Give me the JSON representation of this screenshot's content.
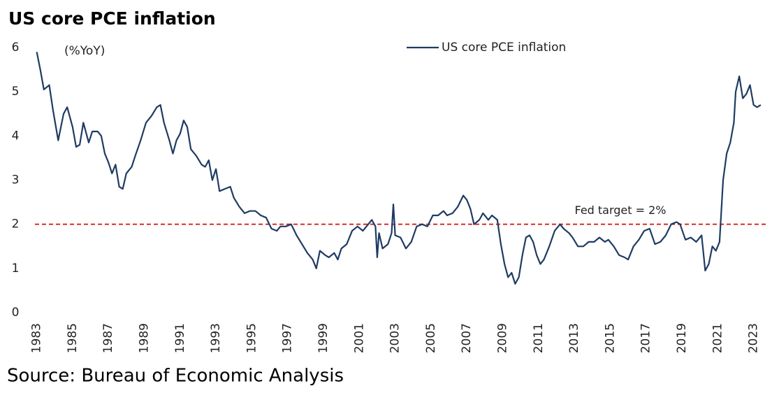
{
  "chart_data": {
    "type": "line",
    "title": "US core PCE inflation",
    "y_label": "(%YoY)",
    "source": "Source: Bureau of Economic Analysis",
    "target": 2,
    "target_label": "Fed target = 2%",
    "target_color": "#d62020",
    "legend": "top-right",
    "grid": false,
    "xlim": [
      1982.9,
      2023.6
    ],
    "xticks": [
      1983,
      1985,
      1987,
      1989,
      1991,
      1993,
      1995,
      1997,
      1999,
      2001,
      2003,
      2005,
      2007,
      2009,
      2011,
      2013,
      2015,
      2017,
      2019,
      2021,
      2023
    ],
    "ylim": [
      0,
      6
    ],
    "yticks": [
      0,
      1,
      2,
      3,
      4,
      5,
      6
    ],
    "x": [
      1983.0,
      1983.2,
      1983.4,
      1983.7,
      1983.9,
      1984.2,
      1984.5,
      1984.7,
      1985.0,
      1985.2,
      1985.4,
      1985.6,
      1985.9,
      1986.1,
      1986.4,
      1986.6,
      1986.8,
      1987.0,
      1987.2,
      1987.4,
      1987.6,
      1987.8,
      1988.0,
      1988.3,
      1988.5,
      1988.8,
      1989.1,
      1989.4,
      1989.7,
      1989.9,
      1990.1,
      1990.4,
      1990.6,
      1990.8,
      1991.0,
      1991.2,
      1991.4,
      1991.6,
      1991.9,
      1992.2,
      1992.4,
      1992.6,
      1992.8,
      1993.0,
      1993.2,
      1993.5,
      1993.8,
      1994.0,
      1994.3,
      1994.6,
      1994.9,
      1995.2,
      1995.5,
      1995.8,
      1996.1,
      1996.4,
      1996.6,
      1996.9,
      1997.2,
      1997.5,
      1997.8,
      1998.1,
      1998.4,
      1998.6,
      1998.8,
      1999.1,
      1999.3,
      1999.6,
      1999.8,
      2000.0,
      2000.3,
      2000.6,
      2000.9,
      2001.2,
      2001.5,
      2001.7,
      2001.9,
      2002.0,
      2002.1,
      2002.3,
      2002.6,
      2002.8,
      2002.9,
      2003.0,
      2003.3,
      2003.6,
      2003.9,
      2004.2,
      2004.5,
      2004.8,
      2005.1,
      2005.4,
      2005.7,
      2005.9,
      2006.2,
      2006.5,
      2006.8,
      2007.0,
      2007.2,
      2007.4,
      2007.7,
      2007.9,
      2008.2,
      2008.4,
      2008.7,
      2008.9,
      2009.1,
      2009.3,
      2009.5,
      2009.7,
      2009.9,
      2010.1,
      2010.3,
      2010.5,
      2010.7,
      2010.9,
      2011.1,
      2011.3,
      2011.6,
      2011.9,
      2012.2,
      2012.4,
      2012.7,
      2012.9,
      2013.2,
      2013.5,
      2013.8,
      2014.1,
      2014.4,
      2014.7,
      2014.9,
      2015.2,
      2015.5,
      2015.8,
      2016.0,
      2016.3,
      2016.6,
      2016.9,
      2017.2,
      2017.5,
      2017.8,
      2018.1,
      2018.4,
      2018.7,
      2018.9,
      2019.2,
      2019.5,
      2019.8,
      2020.1,
      2020.3,
      2020.5,
      2020.7,
      2020.9,
      2021.1,
      2021.3,
      2021.5,
      2021.7,
      2021.9,
      2022.0,
      2022.2,
      2022.4,
      2022.6,
      2022.8,
      2023.0,
      2023.2,
      2023.4
    ],
    "series": [
      {
        "name": "US core PCE inflation",
        "color": "#1f3b63",
        "values": [
          5.9,
          5.5,
          5.05,
          5.15,
          4.6,
          3.9,
          4.5,
          4.65,
          4.2,
          3.75,
          3.8,
          4.3,
          3.85,
          4.1,
          4.1,
          4.0,
          3.6,
          3.4,
          3.15,
          3.35,
          2.85,
          2.8,
          3.15,
          3.3,
          3.55,
          3.9,
          4.3,
          4.45,
          4.65,
          4.7,
          4.3,
          3.9,
          3.6,
          3.9,
          4.05,
          4.35,
          4.2,
          3.7,
          3.55,
          3.35,
          3.3,
          3.45,
          3.0,
          3.25,
          2.75,
          2.8,
          2.85,
          2.6,
          2.4,
          2.25,
          2.3,
          2.3,
          2.2,
          2.15,
          1.9,
          1.85,
          1.95,
          1.95,
          2.0,
          1.75,
          1.55,
          1.35,
          1.2,
          1.0,
          1.4,
          1.3,
          1.25,
          1.35,
          1.2,
          1.45,
          1.55,
          1.85,
          1.95,
          1.85,
          2.0,
          2.1,
          1.95,
          1.25,
          1.8,
          1.45,
          1.55,
          1.8,
          2.45,
          1.75,
          1.7,
          1.45,
          1.6,
          1.95,
          2.0,
          1.95,
          2.2,
          2.2,
          2.3,
          2.2,
          2.25,
          2.4,
          2.65,
          2.55,
          2.35,
          2.0,
          2.1,
          2.25,
          2.1,
          2.2,
          2.1,
          1.55,
          1.1,
          0.8,
          0.9,
          0.65,
          0.8,
          1.3,
          1.7,
          1.75,
          1.6,
          1.3,
          1.1,
          1.2,
          1.5,
          1.85,
          2.0,
          1.9,
          1.8,
          1.7,
          1.5,
          1.5,
          1.6,
          1.6,
          1.7,
          1.6,
          1.65,
          1.5,
          1.3,
          1.25,
          1.2,
          1.5,
          1.65,
          1.85,
          1.9,
          1.55,
          1.6,
          1.75,
          2.0,
          2.05,
          2.0,
          1.65,
          1.7,
          1.6,
          1.75,
          0.95,
          1.1,
          1.5,
          1.4,
          1.6,
          3.0,
          3.6,
          3.85,
          4.3,
          5.0,
          5.35,
          4.85,
          4.95,
          5.15,
          4.7,
          4.65,
          4.7
        ]
      }
    ]
  }
}
